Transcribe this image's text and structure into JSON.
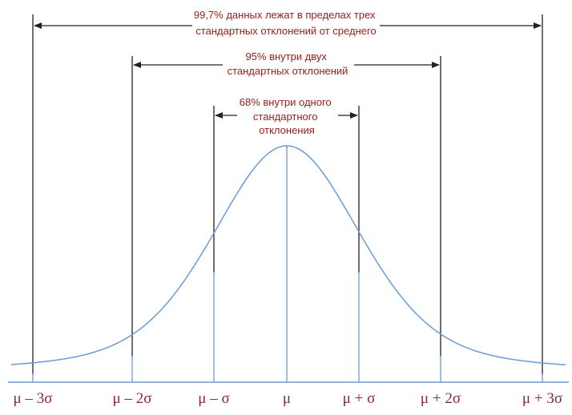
{
  "annotations": {
    "three_sigma": [
      "99,7% данных лежат в пределах трех",
      "стандартных отклонений от среднего"
    ],
    "two_sigma": [
      "95% внутри двух",
      "стандартных отклонений"
    ],
    "one_sigma": [
      "68% внутри одного",
      "стандартного",
      "отклонения"
    ]
  },
  "ticks": [
    {
      "label": "μ – 3σ",
      "sigma": -3
    },
    {
      "label": "μ – 2σ",
      "sigma": -2
    },
    {
      "label": "μ – σ",
      "sigma": -1
    },
    {
      "label": "μ",
      "sigma": 0
    },
    {
      "label": "μ + σ",
      "sigma": 1
    },
    {
      "label": "μ + 2σ",
      "sigma": 2
    },
    {
      "label": "μ + 3σ",
      "sigma": 3
    }
  ],
  "colors": {
    "curve": "#6b9bd2",
    "axis": "#6b9bd2",
    "lines": "#222222",
    "annotation_text": "#9b1b1b",
    "tick_text": "#8b2a2a"
  }
}
